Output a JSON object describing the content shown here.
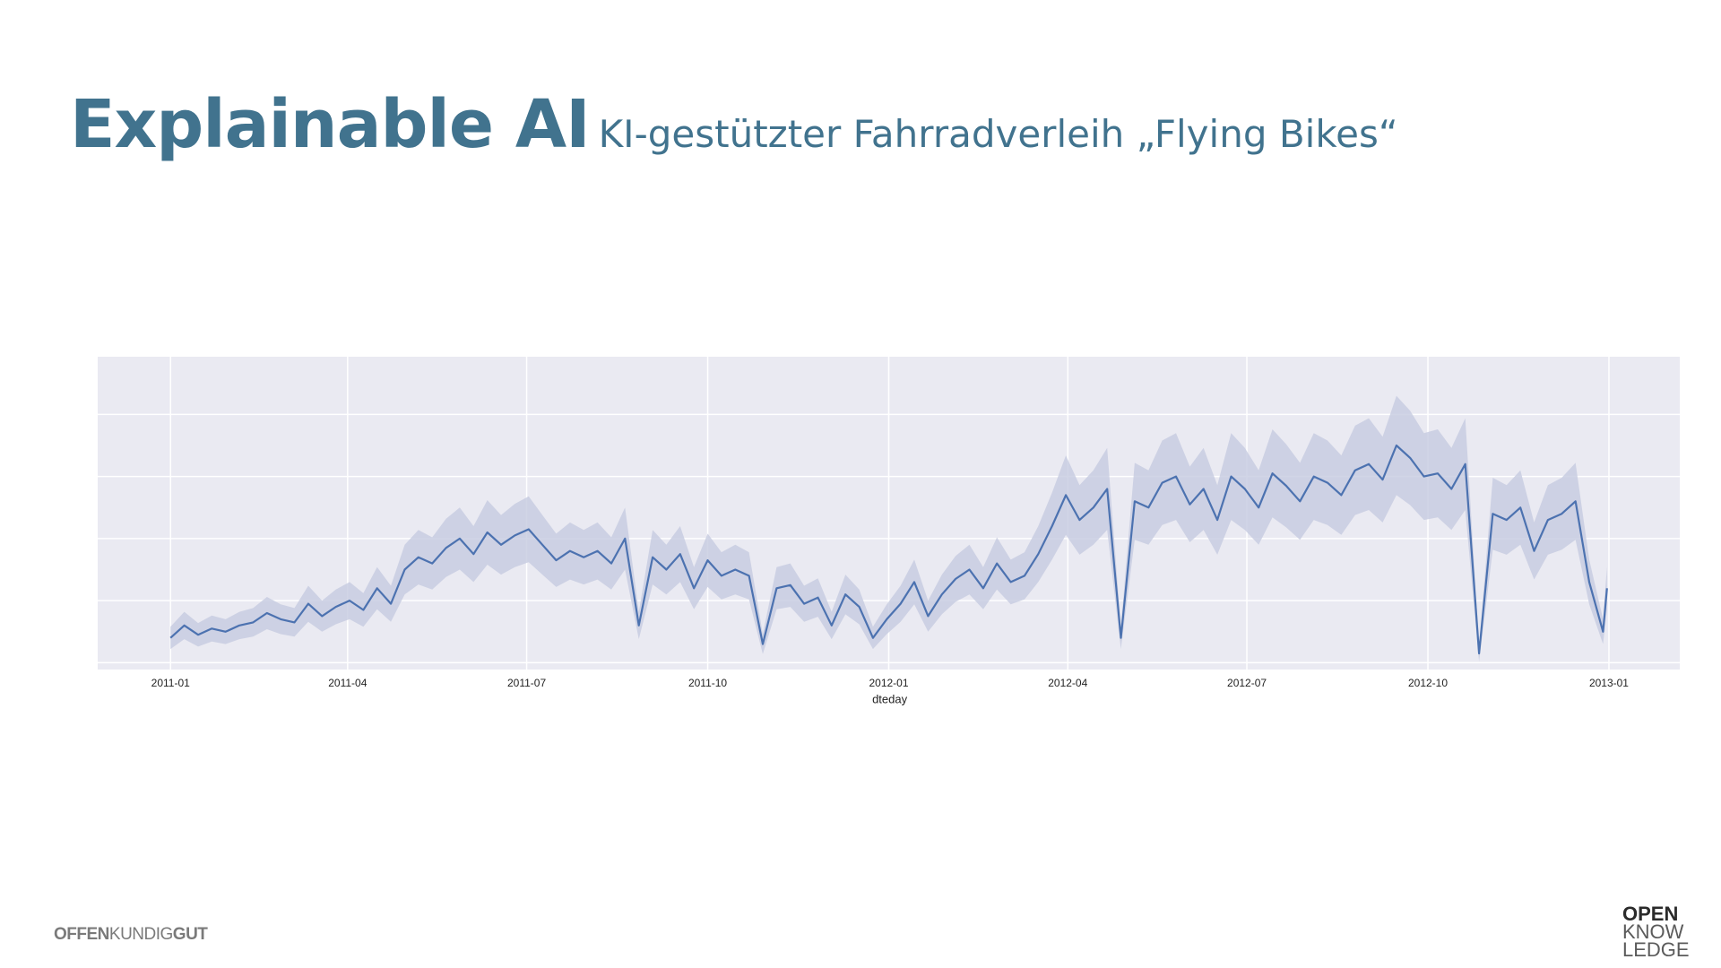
{
  "header": {
    "title": "Explainable AI",
    "subtitle": "KI-gestützter Fahrradverleih „Flying Bikes“"
  },
  "footer": {
    "brand": [
      "OFFEN",
      "KUNDIG",
      "GUT"
    ],
    "logo": [
      "OPEN",
      "KNOW",
      "LEDGE"
    ]
  },
  "chart_data": {
    "type": "line",
    "xlabel": "dteday",
    "grid": true,
    "background": "#eaeaf2",
    "band_color": "#c5cbe0",
    "xlim": [
      -37,
      767
    ],
    "ylim": [
      -11,
      493
    ],
    "xticks": [
      {
        "value": 0,
        "label": "2011-01"
      },
      {
        "value": 90,
        "label": "2011-04"
      },
      {
        "value": 181,
        "label": "2011-07"
      },
      {
        "value": 273,
        "label": "2011-10"
      },
      {
        "value": 365,
        "label": "2012-01"
      },
      {
        "value": 456,
        "label": "2012-04"
      },
      {
        "value": 547,
        "label": "2012-07"
      },
      {
        "value": 639,
        "label": "2012-10"
      },
      {
        "value": 731,
        "label": "2013-01"
      }
    ],
    "yticks": [
      0,
      100,
      200,
      300,
      400
    ],
    "x": [
      0,
      7,
      14,
      21,
      28,
      35,
      42,
      49,
      56,
      63,
      70,
      77,
      84,
      91,
      98,
      105,
      112,
      119,
      126,
      133,
      140,
      147,
      154,
      161,
      168,
      175,
      182,
      189,
      196,
      203,
      210,
      217,
      224,
      231,
      238,
      245,
      252,
      259,
      266,
      273,
      280,
      287,
      294,
      301,
      308,
      315,
      322,
      329,
      336,
      343,
      350,
      357,
      364,
      371,
      378,
      385,
      392,
      399,
      406,
      413,
      420,
      427,
      434,
      441,
      448,
      455,
      462,
      469,
      476,
      483,
      490,
      497,
      504,
      511,
      518,
      525,
      532,
      539,
      546,
      553,
      560,
      567,
      574,
      581,
      588,
      595,
      602,
      609,
      616,
      623,
      630,
      637,
      644,
      651,
      658,
      665,
      672,
      679,
      686,
      693,
      700,
      707,
      714,
      721,
      728,
      730
    ],
    "series": [
      {
        "color": "#4c72b0",
        "values": [
          40,
          60,
          45,
          55,
          50,
          60,
          65,
          80,
          70,
          65,
          95,
          75,
          90,
          100,
          85,
          120,
          95,
          150,
          170,
          160,
          185,
          200,
          175,
          210,
          190,
          205,
          215,
          190,
          165,
          180,
          170,
          180,
          160,
          200,
          60,
          170,
          150,
          175,
          120,
          165,
          140,
          150,
          140,
          30,
          120,
          125,
          95,
          105,
          60,
          110,
          90,
          40,
          70,
          95,
          130,
          75,
          110,
          135,
          150,
          120,
          160,
          130,
          140,
          175,
          220,
          270,
          230,
          250,
          280,
          40,
          260,
          250,
          290,
          300,
          255,
          280,
          230,
          300,
          280,
          250,
          305,
          285,
          260,
          300,
          290,
          270,
          310,
          320,
          295,
          350,
          330,
          300,
          305,
          280,
          320,
          15,
          240,
          230,
          250,
          180,
          230,
          240,
          260,
          130,
          50,
          120
        ],
        "ci_lower": [
          22,
          38,
          26,
          34,
          30,
          38,
          42,
          54,
          46,
          42,
          66,
          50,
          62,
          70,
          58,
          86,
          66,
          110,
          126,
          118,
          138,
          150,
          130,
          158,
          142,
          154,
          162,
          142,
          122,
          134,
          126,
          134,
          118,
          150,
          38,
          126,
          110,
          130,
          86,
          122,
          102,
          110,
          102,
          14,
          86,
          90,
          66,
          74,
          38,
          78,
          62,
          22,
          46,
          66,
          94,
          50,
          78,
          98,
          110,
          86,
          118,
          94,
          102,
          130,
          166,
          206,
          174,
          190,
          214,
          22,
          198,
          190,
          222,
          230,
          194,
          214,
          174,
          230,
          214,
          190,
          234,
          218,
          198,
          230,
          222,
          206,
          238,
          246,
          226,
          270,
          254,
          230,
          234,
          214,
          246,
          2,
          182,
          174,
          190,
          134,
          174,
          182,
          198,
          94,
          30,
          86
        ],
        "ci_upper": [
          58,
          82,
          64,
          76,
          70,
          82,
          88,
          106,
          94,
          88,
          124,
          100,
          118,
          130,
          112,
          154,
          124,
          190,
          214,
          202,
          232,
          250,
          220,
          262,
          238,
          256,
          268,
          238,
          208,
          226,
          214,
          226,
          202,
          250,
          82,
          214,
          190,
          220,
          154,
          208,
          178,
          190,
          178,
          46,
          154,
          160,
          124,
          136,
          82,
          142,
          118,
          58,
          94,
          124,
          166,
          100,
          142,
          172,
          190,
          154,
          202,
          166,
          178,
          220,
          274,
          334,
          286,
          310,
          346,
          58,
          322,
          310,
          358,
          370,
          316,
          346,
          286,
          370,
          346,
          310,
          376,
          352,
          322,
          370,
          358,
          334,
          382,
          394,
          364,
          430,
          406,
          370,
          376,
          346,
          394,
          28,
          298,
          286,
          310,
          226,
          286,
          298,
          322,
          166,
          70,
          154
        ]
      }
    ]
  }
}
